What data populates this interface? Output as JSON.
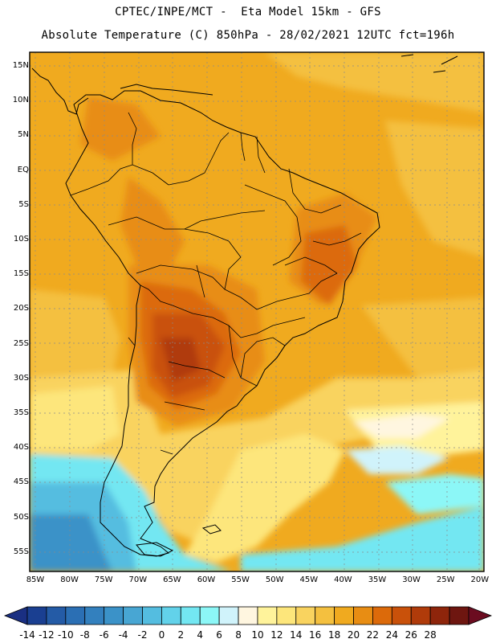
{
  "header": {
    "line1": "CPTEC/INPE/MCT -  Eta Model 15km - GFS",
    "line2": "Absolute Temperature (C) 850hPa - 28/02/2021 12UTC fct=196h"
  },
  "axes": {
    "lat_labels": [
      "15N",
      "10N",
      "5N",
      "EQ",
      "5S",
      "10S",
      "15S",
      "20S",
      "25S",
      "30S",
      "35S",
      "40S",
      "45S",
      "50S",
      "55S"
    ],
    "lon_labels": [
      "85W",
      "80W",
      "75W",
      "70W",
      "65W",
      "60W",
      "55W",
      "50W",
      "45W",
      "40W",
      "35W",
      "30W",
      "25W",
      "20W"
    ]
  },
  "colorbar": {
    "labels": [
      "-14",
      "-12",
      "-10",
      "-8",
      "-6",
      "-4",
      "-2",
      "0",
      "2",
      "4",
      "6",
      "8",
      "10",
      "12",
      "14",
      "16",
      "18",
      "20",
      "22",
      "24",
      "26",
      "28"
    ],
    "colors": [
      "#1a3f91",
      "#245ba6",
      "#2b6fb4",
      "#3380be",
      "#3b92c8",
      "#48a6d3",
      "#54bde0",
      "#62d2ea",
      "#73e7f2",
      "#8cf7f7",
      "#d0f3fb",
      "#fff6e0",
      "#fff39b",
      "#fde67b",
      "#f9d35f",
      "#f4c03f",
      "#f0aa1f",
      "#e88d13",
      "#dc6a0a",
      "#c9510a",
      "#b03b0a",
      "#8e250b",
      "#6e1610"
    ],
    "left_arrow": "#1a2f82",
    "right_arrow": "#6b0c20"
  }
}
